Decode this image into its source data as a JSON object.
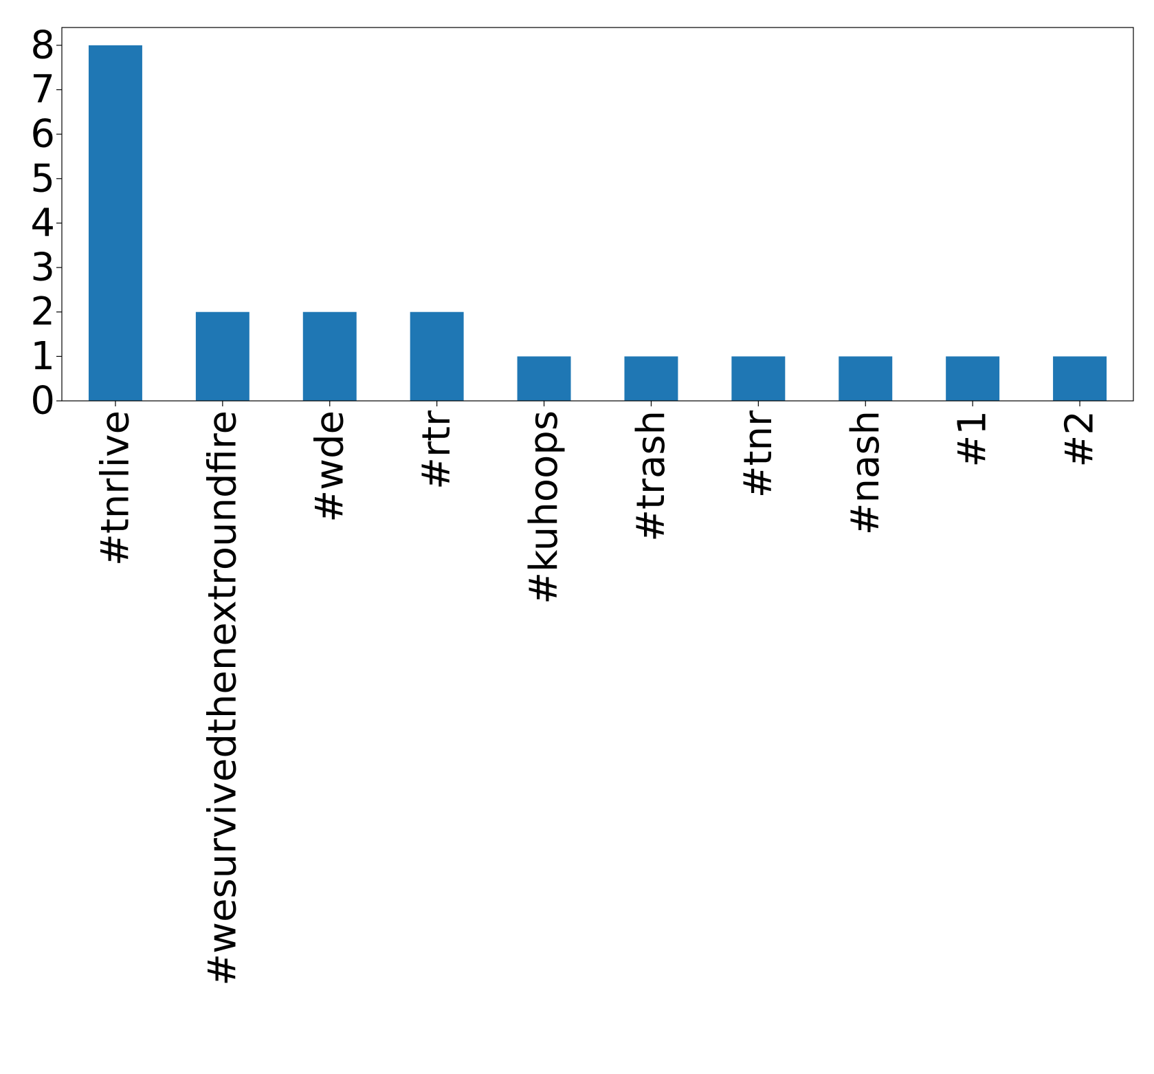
{
  "chart_data": {
    "type": "bar",
    "title": "",
    "xlabel": "",
    "ylabel": "",
    "categories": [
      "#tnrlive",
      "#wesurvivedthenextroundfire",
      "#wde",
      "#rtr",
      "#kuhoops",
      "#trash",
      "#tnr",
      "#nash",
      "#1",
      "#2"
    ],
    "series": [
      {
        "values": [
          8,
          2,
          2,
          2,
          1,
          1,
          1,
          1,
          1,
          1
        ],
        "color": "#1f77b4"
      }
    ],
    "y_ticks": [
      0,
      1,
      2,
      3,
      4,
      5,
      6,
      7,
      8
    ],
    "ylim": [
      0,
      8.4
    ],
    "grid": false,
    "legend": "none",
    "x_tick_rotation": "vertical"
  }
}
